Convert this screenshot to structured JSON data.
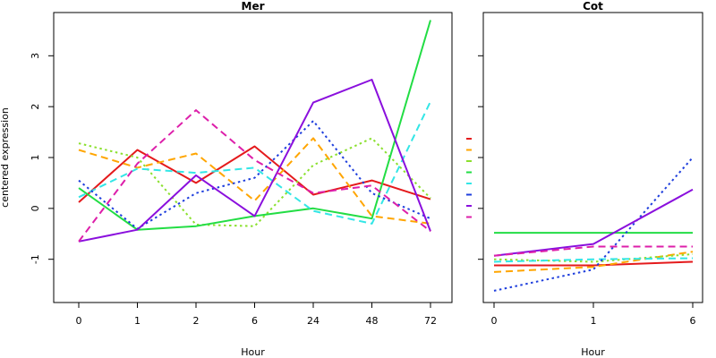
{
  "y_axis_label": "centered expression",
  "colors": {
    "red": "#e41a1c",
    "orange": "#ffa500",
    "lightgreen": "#8be02e",
    "green": "#22dd44",
    "cyan": "#33e6e6",
    "blue": "#1f3fdd",
    "purple": "#8a0fdd",
    "magenta": "#dd1faa"
  },
  "chart_data": [
    {
      "type": "line",
      "title": "Mer",
      "xlabel": "Hour",
      "ylabel": "centered expression",
      "categories": [
        "0",
        "1",
        "2",
        "6",
        "24",
        "48",
        "72"
      ],
      "ylim": [
        -1.85,
        3.85
      ],
      "yticks": [
        -1,
        0,
        1,
        2,
        3
      ],
      "grid": false,
      "series": [
        {
          "color": "#e41a1c",
          "dash": "solid",
          "values": [
            0.12,
            1.15,
            0.5,
            1.22,
            0.27,
            0.55,
            0.18
          ]
        },
        {
          "color": "#ffa500",
          "dash": "dashed",
          "values": [
            1.15,
            0.8,
            1.08,
            0.15,
            1.38,
            -0.15,
            -0.3
          ]
        },
        {
          "color": "#8be02e",
          "dash": "dotted",
          "values": [
            1.28,
            1.0,
            -0.32,
            -0.35,
            0.85,
            1.38,
            0.2
          ]
        },
        {
          "color": "#22dd44",
          "dash": "solid",
          "values": [
            0.4,
            -0.42,
            -0.35,
            -0.15,
            0.0,
            -0.2,
            3.7
          ]
        },
        {
          "color": "#33e6e6",
          "dash": "dashed",
          "values": [
            0.22,
            0.78,
            0.7,
            0.8,
            -0.05,
            -0.3,
            2.1
          ]
        },
        {
          "color": "#1f3fdd",
          "dash": "dotted",
          "values": [
            0.55,
            -0.4,
            0.3,
            0.6,
            1.72,
            0.3,
            -0.2
          ]
        },
        {
          "color": "#8a0fdd",
          "dash": "solid",
          "values": [
            -0.65,
            -0.42,
            0.65,
            -0.15,
            2.08,
            2.53,
            -0.45
          ]
        },
        {
          "color": "#dd1faa",
          "dash": "dashed",
          "values": [
            -0.65,
            0.88,
            1.93,
            0.95,
            0.3,
            0.45,
            -0.45
          ]
        }
      ]
    },
    {
      "type": "line",
      "title": "Cot",
      "xlabel": "Hour",
      "categories": [
        "0",
        "1",
        "6"
      ],
      "ylim": [
        -1.85,
        3.85
      ],
      "yticks": [
        -1,
        0,
        1,
        2,
        3
      ],
      "grid": false,
      "series": [
        {
          "color": "#e41a1c",
          "dash": "solid",
          "values": [
            -1.12,
            -1.12,
            -1.05
          ]
        },
        {
          "color": "#ffa500",
          "dash": "dashed",
          "values": [
            -1.25,
            -1.15,
            -0.85
          ]
        },
        {
          "color": "#8be02e",
          "dash": "dotted",
          "values": [
            -1.0,
            -1.05,
            -0.9
          ]
        },
        {
          "color": "#22dd44",
          "dash": "solid",
          "values": [
            -0.48,
            -0.48,
            -0.48
          ]
        },
        {
          "color": "#33e6e6",
          "dash": "dashed",
          "values": [
            -1.05,
            -1.0,
            -0.98
          ]
        },
        {
          "color": "#1f3fdd",
          "dash": "dotted",
          "values": [
            -1.62,
            -1.2,
            1.0
          ]
        },
        {
          "color": "#8a0fdd",
          "dash": "solid",
          "values": [
            -0.93,
            -0.7,
            0.37
          ]
        },
        {
          "color": "#dd1faa",
          "dash": "dashed",
          "values": [
            -0.93,
            -0.75,
            -0.75
          ]
        }
      ]
    }
  ]
}
